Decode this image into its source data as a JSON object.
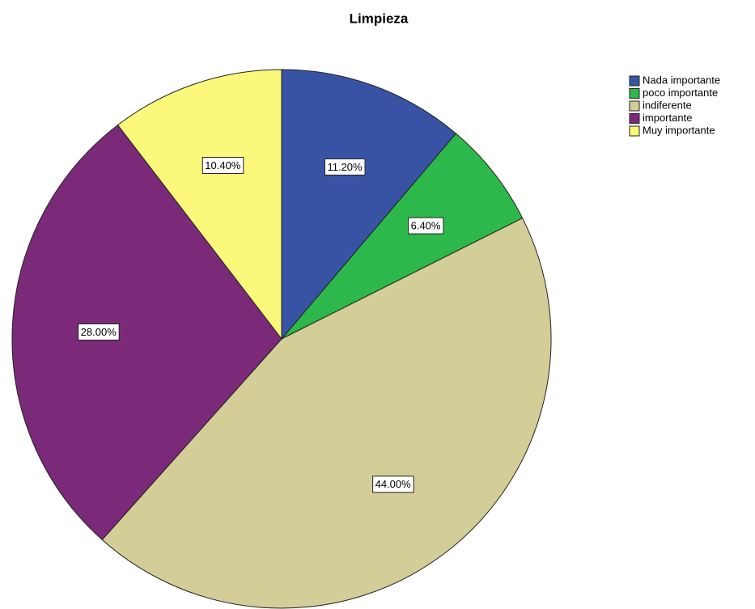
{
  "chart_data": {
    "type": "pie",
    "title": "Limpieza",
    "categories": [
      "Nada importante",
      "poco importante",
      "indiferente",
      "importante",
      "Muy importante"
    ],
    "values": [
      11.2,
      6.4,
      44,
      28,
      10.4
    ],
    "value_labels": [
      "11.20%",
      "6.40%",
      "44.00%",
      "28.00%",
      "10.40%"
    ],
    "colors": [
      "#3953a4",
      "#2db84b",
      "#d3ce97",
      "#7b2a79",
      "#fbf87b"
    ],
    "legend": "upper right"
  }
}
